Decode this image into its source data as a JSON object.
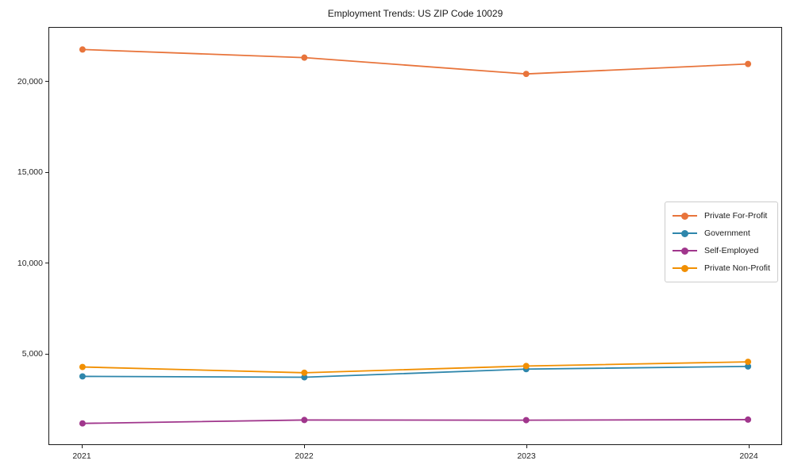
{
  "title": "Employment Trends: US ZIP Code 10029",
  "chart_data": {
    "type": "line",
    "title": "Employment Trends: US ZIP Code 10029",
    "xlabel": "",
    "ylabel": "",
    "x": [
      2021,
      2022,
      2023,
      2024
    ],
    "x_tick_labels": [
      "2021",
      "2022",
      "2023",
      "2024"
    ],
    "series": [
      {
        "name": "Private For-Profit",
        "color": "#E8743B",
        "values": [
          21800,
          21350,
          20450,
          21000
        ]
      },
      {
        "name": "Government",
        "color": "#2E86AB",
        "values": [
          3750,
          3700,
          4150,
          4300
        ]
      },
      {
        "name": "Self-Employed",
        "color": "#A0368C",
        "values": [
          1150,
          1340,
          1330,
          1360
        ]
      },
      {
        "name": "Private Non-Profit",
        "color": "#F18F01",
        "values": [
          4270,
          3950,
          4320,
          4550
        ]
      }
    ],
    "xlim": [
      2020.85,
      2024.15
    ],
    "ylim": [
      0,
      23000
    ],
    "yticks": [
      5000,
      10000,
      15000,
      20000
    ],
    "ytick_labels": [
      "5,000",
      "10,000",
      "15,000",
      "20,000"
    ],
    "grid": false,
    "legend_position": "center right",
    "marker": "circle",
    "marker_size": 4,
    "line_width": 1.8,
    "colors": {
      "spine": "#1a1a1a",
      "tick_text": "#262626",
      "legend_border": "#cccccc",
      "background": "#ffffff"
    }
  }
}
